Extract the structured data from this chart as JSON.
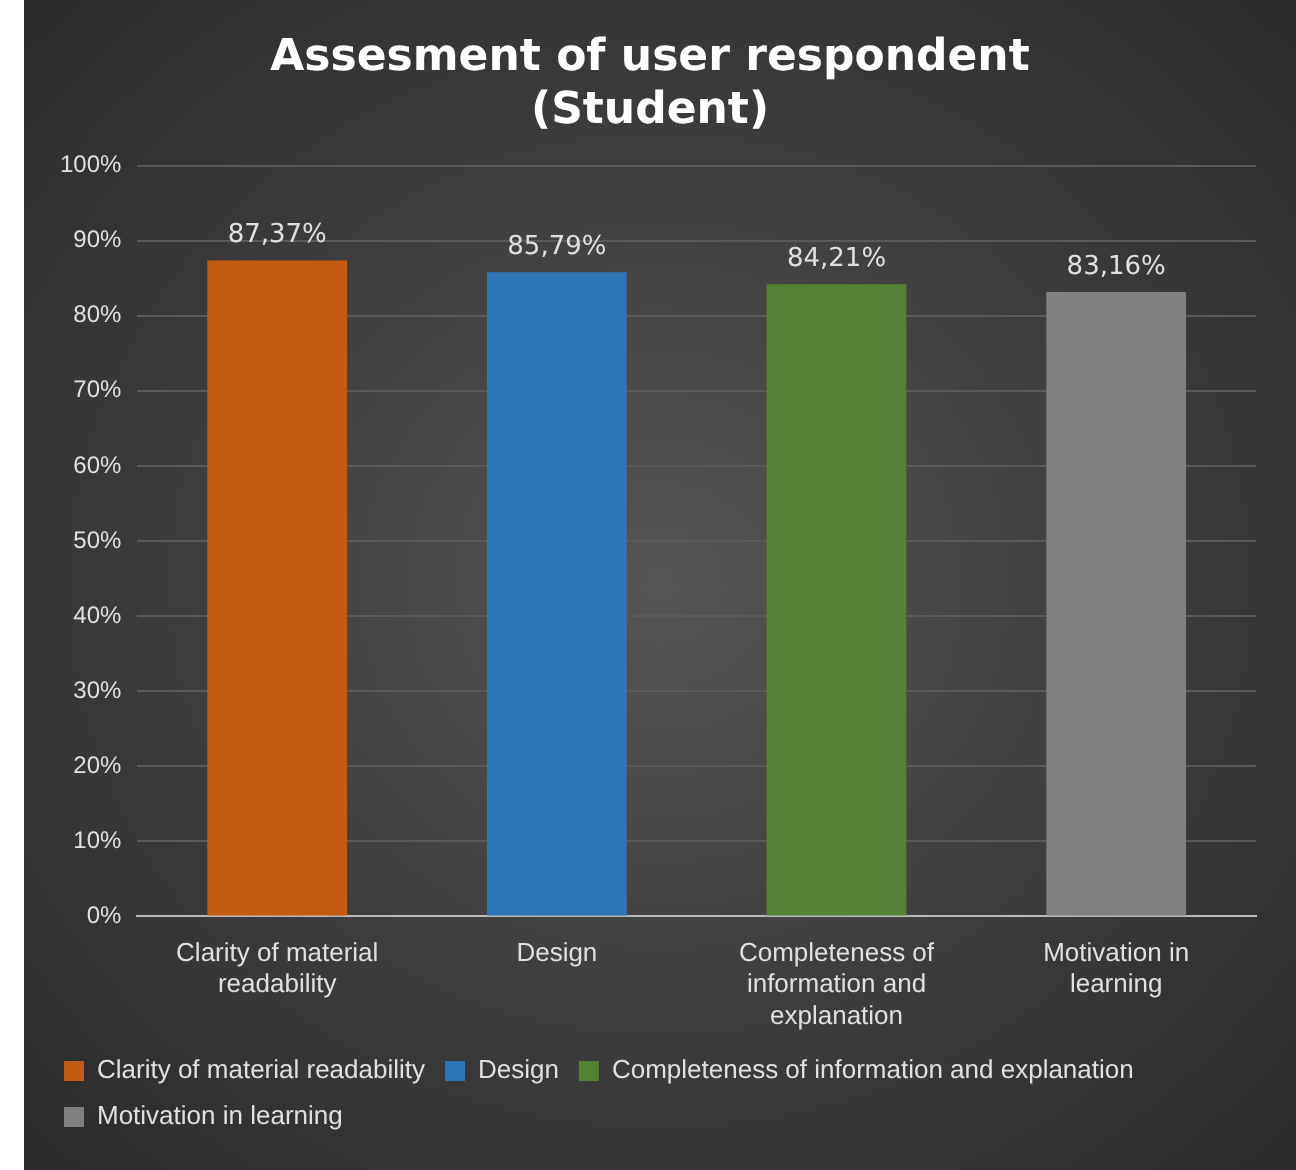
{
  "chart_data": {
    "type": "bar",
    "title": "Assesment of user respondent (Student)",
    "categories": [
      "Clarity of material readability",
      "Design",
      "Completeness of information and explanation",
      "Motivation in learning"
    ],
    "series": [
      {
        "name": "Clarity of material readability",
        "color": "#c55a11",
        "values": [
          87.37,
          null,
          null,
          null
        ],
        "value_labels": [
          "87,37%",
          null,
          null,
          null
        ]
      },
      {
        "name": "Design",
        "color": "#2e75b6",
        "values": [
          null,
          85.79,
          null,
          null
        ],
        "value_labels": [
          null,
          "85,79%",
          null,
          null
        ]
      },
      {
        "name": "Completeness of information and explanation",
        "color": "#548235",
        "values": [
          null,
          null,
          84.21,
          null
        ],
        "value_labels": [
          null,
          null,
          "84,21%",
          null
        ]
      },
      {
        "name": "Motivation in learning",
        "color": "#808080",
        "values": [
          null,
          null,
          null,
          83.16
        ],
        "value_labels": [
          null,
          null,
          null,
          "83,16%"
        ]
      }
    ],
    "ylim": [
      0,
      100
    ],
    "yticks": [
      {
        "value": 0,
        "label": "0%"
      },
      {
        "value": 10,
        "label": "10%"
      },
      {
        "value": 20,
        "label": "20%"
      },
      {
        "value": 30,
        "label": "30%"
      },
      {
        "value": 40,
        "label": "40%"
      },
      {
        "value": 50,
        "label": "50%"
      },
      {
        "value": 60,
        "label": "60%"
      },
      {
        "value": 70,
        "label": "70%"
      },
      {
        "value": 80,
        "label": "80%"
      },
      {
        "value": 90,
        "label": "90%"
      },
      {
        "value": 100,
        "label": "100%"
      }
    ],
    "grid": "y",
    "legend": "bottom"
  }
}
